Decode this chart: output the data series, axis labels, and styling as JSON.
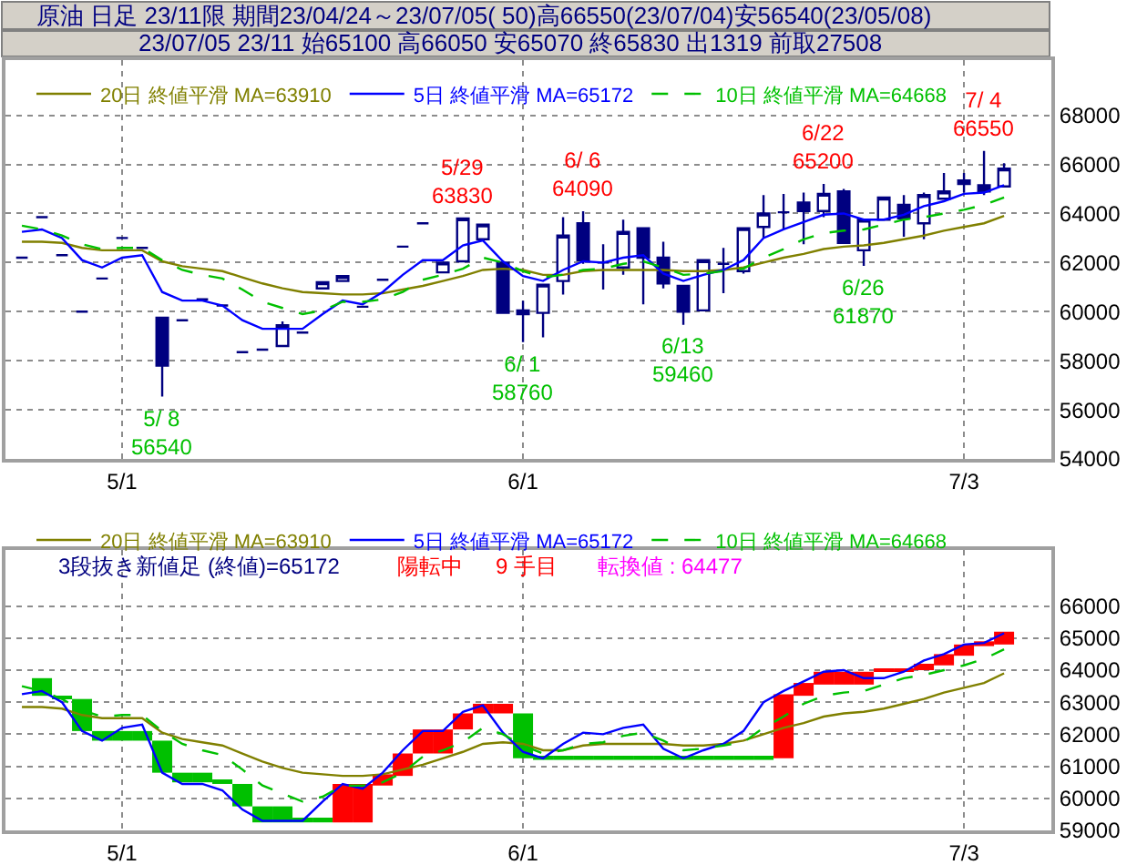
{
  "chart_data": [
    {
      "type": "candlestick",
      "title": "原油 日足 23/11限 期間23/04/24～23/07/05( 50)高66550(23/07/04)安56540(23/05/08)",
      "subtitle": "23/07/05 23/11 始65100 高66050 安65070 終65830 出1319 前取27508",
      "categories": [
        null,
        null,
        null,
        null,
        null,
        "5/1",
        null,
        null,
        null,
        null,
        null,
        null,
        null,
        null,
        null,
        null,
        null,
        null,
        null,
        null,
        null,
        null,
        null,
        null,
        null,
        "6/1",
        null,
        null,
        null,
        null,
        null,
        null,
        null,
        null,
        null,
        null,
        null,
        null,
        null,
        null,
        null,
        null,
        null,
        null,
        null,
        null,
        null,
        "7/3",
        null,
        null
      ],
      "ohlc": [
        [
          62200,
          62200,
          62200,
          62200
        ],
        [
          63850,
          63850,
          63850,
          63850
        ],
        [
          62300,
          62300,
          62300,
          62300
        ],
        [
          60000,
          60000,
          60000,
          60000
        ],
        [
          61350,
          61350,
          61350,
          61350
        ],
        [
          63000,
          63000,
          63000,
          63000
        ],
        [
          62600,
          62600,
          62600,
          62600
        ],
        [
          59750,
          59750,
          56540,
          57800
        ],
        [
          59650,
          59650,
          59650,
          59650
        ],
        [
          60500,
          60500,
          60500,
          60500
        ],
        [
          60250,
          60250,
          60250,
          60250
        ],
        [
          58350,
          58350,
          58350,
          58350
        ],
        [
          58450,
          58450,
          58450,
          58450
        ],
        [
          58600,
          59600,
          58550,
          59450
        ],
        [
          59150,
          59150,
          59150,
          59150
        ],
        [
          60950,
          61200,
          60950,
          61200
        ],
        [
          61250,
          61450,
          61250,
          61450
        ],
        [
          60200,
          60200,
          60200,
          60200
        ],
        [
          61300,
          61300,
          61300,
          61300
        ],
        [
          62650,
          62650,
          62650,
          62650
        ],
        [
          63600,
          63600,
          63600,
          63600
        ],
        [
          61600,
          62000,
          61600,
          62000
        ],
        [
          62050,
          63830,
          62050,
          63800
        ],
        [
          62950,
          63550,
          62950,
          63550
        ],
        [
          62000,
          62000,
          59950,
          59950
        ],
        [
          60050,
          60450,
          58760,
          59900
        ],
        [
          59950,
          61100,
          58950,
          61100
        ],
        [
          61250,
          63850,
          60700,
          63100
        ],
        [
          63600,
          64090,
          61950,
          62100
        ],
        [
          62000,
          62750,
          60900,
          62000
        ],
        [
          61800,
          63750,
          61500,
          63250
        ],
        [
          63400,
          63400,
          60300,
          62200
        ],
        [
          62200,
          62850,
          60950,
          61150
        ],
        [
          61050,
          61050,
          59460,
          60000
        ],
        [
          60050,
          62100,
          60050,
          62100
        ],
        [
          61950,
          62600,
          60750,
          61950
        ],
        [
          61650,
          63400,
          61550,
          63400
        ],
        [
          63450,
          64750,
          63000,
          64000
        ],
        [
          64050,
          64800,
          63350,
          64050
        ],
        [
          64450,
          64850,
          62750,
          64100
        ],
        [
          64100,
          65200,
          63850,
          64800
        ],
        [
          64900,
          65000,
          62800,
          62800
        ],
        [
          62500,
          63750,
          61870,
          63750
        ],
        [
          63750,
          64650,
          63750,
          64650
        ],
        [
          64350,
          64750,
          63050,
          63800
        ],
        [
          63600,
          64850,
          62950,
          64750
        ],
        [
          64600,
          65650,
          64600,
          64900
        ],
        [
          65350,
          65650,
          64850,
          65200
        ],
        [
          65150,
          66550,
          64750,
          64900
        ],
        [
          65100,
          66050,
          65070,
          65830
        ]
      ],
      "color": "#000080",
      "series": [
        {
          "type": "line",
          "name": "20日 終値平滑 MA=63910",
          "color": "#808000",
          "values": [
            62850,
            62850,
            62800,
            62600,
            62500,
            62500,
            62500,
            62050,
            61850,
            61750,
            61650,
            61400,
            61150,
            60950,
            60800,
            60750,
            60700,
            60700,
            60750,
            60900,
            61050,
            61250,
            61450,
            61700,
            61750,
            61700,
            61500,
            61500,
            61650,
            61700,
            61700,
            61700,
            61700,
            61650,
            61650,
            61700,
            61800,
            62000,
            62200,
            62350,
            62550,
            62650,
            62700,
            62800,
            62950,
            63100,
            63300,
            63450,
            63600,
            63900
          ]
        },
        {
          "type": "line",
          "name": "5日 終値平滑 MA=65172",
          "color": "#0000ff",
          "values": [
            63250,
            63350,
            63000,
            62100,
            61800,
            62200,
            62300,
            60800,
            60450,
            60450,
            60250,
            59650,
            59300,
            59300,
            59300,
            59900,
            60450,
            60300,
            60800,
            61500,
            62100,
            62100,
            62700,
            62900,
            62050,
            61450,
            61250,
            61700,
            62050,
            62000,
            62200,
            62300,
            61550,
            61250,
            61500,
            61700,
            62100,
            63000,
            63350,
            63650,
            63950,
            64000,
            63750,
            63750,
            63950,
            64300,
            64500,
            64800,
            64850,
            65150
          ]
        },
        {
          "type": "line",
          "name": "10日 終値平滑 MA=64668",
          "color": "#00c000",
          "line_style": "dashed",
          "values": [
            63500,
            63350,
            63100,
            62750,
            62550,
            62600,
            62600,
            62100,
            61700,
            61500,
            61350,
            60900,
            60400,
            60150,
            59900,
            60050,
            60400,
            60400,
            60500,
            60800,
            61300,
            61500,
            61750,
            62200,
            62000,
            61650,
            61400,
            61500,
            61700,
            61750,
            61950,
            62050,
            61800,
            61500,
            61550,
            61650,
            61750,
            62200,
            62550,
            62950,
            63200,
            63300,
            63350,
            63550,
            63750,
            63850,
            64000,
            64150,
            64350,
            64650
          ]
        }
      ],
      "ylim": [
        54000,
        70250
      ],
      "yticks": [
        54000,
        56000,
        58000,
        60000,
        62000,
        64000,
        66000,
        68000
      ],
      "grid": true,
      "legend": "top left",
      "annotations": [
        {
          "text": "5/ 8\n56540",
          "y": 56540
        },
        {
          "text": "5/29\n63830",
          "y": 63830
        },
        {
          "text": "6/ 1\n58760",
          "y": 58760
        },
        {
          "text": "6/ 6\n64090",
          "y": 64090
        },
        {
          "text": "6/13\n59460",
          "y": 59460
        },
        {
          "text": "6/22\n65200",
          "y": 65200
        },
        {
          "text": "6/26\n61870",
          "y": 61870
        },
        {
          "text": "7/ 4\n66550",
          "y": 66550
        }
      ]
    },
    {
      "type": "bar",
      "categories": [
        null,
        null,
        null,
        null,
        null,
        "5/1",
        null,
        null,
        null,
        null,
        null,
        null,
        null,
        null,
        null,
        null,
        null,
        null,
        null,
        null,
        null,
        null,
        null,
        null,
        null,
        "6/1",
        null,
        null,
        null,
        null,
        null,
        null,
        null,
        null,
        null,
        null,
        null,
        null,
        null,
        null,
        null,
        null,
        null,
        null,
        null,
        null,
        null,
        "7/3",
        null,
        null
      ],
      "series": [
        {
          "base": [
            null,
            63750,
            63200,
            63100,
            62100,
            62100,
            62100,
            61800,
            60800,
            60800,
            60550,
            60450,
            59750,
            59750,
            59350,
            59350,
            59250,
            59250,
            60400,
            60700,
            61400,
            61400,
            62150,
            62650,
            62650,
            62650,
            61300,
            61300,
            61300,
            61300,
            61300,
            61300,
            61300,
            61300,
            61300,
            61300,
            61300,
            61300,
            61250,
            63200,
            63550,
            63550,
            63550,
            63950,
            63950,
            64000,
            64150,
            64450,
            64750,
            64800
          ],
          "values": [
            null,
            -550,
            -100,
            -1000,
            -300,
            -300,
            -300,
            -1000,
            -300,
            -300,
            -100,
            -700,
            -500,
            -500,
            -100,
            -100,
            1200,
            1200,
            350,
            700,
            750,
            750,
            500,
            300,
            300,
            -1400,
            -100,
            -100,
            -100,
            -100,
            -100,
            -100,
            -100,
            -100,
            -100,
            -100,
            -100,
            -100,
            2000,
            400,
            400,
            400,
            400,
            100,
            100,
            200,
            350,
            350,
            150,
            400
          ],
          "colors": [
            null,
            "#00c000",
            "#00c000",
            "#00c000",
            "#00c000",
            "#00c000",
            "#00c000",
            "#00c000",
            "#00c000",
            "#00c000",
            "#00c000",
            "#00c000",
            "#00c000",
            "#00c000",
            "#00c000",
            "#00c000",
            "#ff0000",
            "#ff0000",
            "#ff0000",
            "#ff0000",
            "#ff0000",
            "#ff0000",
            "#ff0000",
            "#ff0000",
            "#ff0000",
            "#00c000",
            "#00c000",
            "#00c000",
            "#00c000",
            "#00c000",
            "#00c000",
            "#00c000",
            "#00c000",
            "#00c000",
            "#00c000",
            "#00c000",
            "#00c000",
            "#00c000",
            "#ff0000",
            "#ff0000",
            "#ff0000",
            "#ff0000",
            "#ff0000",
            "#ff0000",
            "#ff0000",
            "#ff0000",
            "#ff0000",
            "#ff0000",
            "#ff0000",
            "#ff0000"
          ]
        },
        {
          "type": "line",
          "name": "20日 終値平滑 MA=63910",
          "color": "#808000",
          "values": [
            62850,
            62850,
            62800,
            62600,
            62500,
            62500,
            62500,
            62050,
            61850,
            61750,
            61650,
            61400,
            61150,
            60950,
            60800,
            60750,
            60700,
            60700,
            60750,
            60900,
            61050,
            61250,
            61450,
            61700,
            61750,
            61700,
            61500,
            61500,
            61650,
            61700,
            61700,
            61700,
            61700,
            61650,
            61650,
            61700,
            61800,
            62000,
            62200,
            62350,
            62550,
            62650,
            62700,
            62800,
            62950,
            63100,
            63300,
            63450,
            63600,
            63900
          ]
        },
        {
          "type": "line",
          "name": "5日 終値平滑 MA=65172",
          "color": "#0000ff",
          "values": [
            63250,
            63350,
            63000,
            62100,
            61800,
            62200,
            62300,
            60800,
            60450,
            60450,
            60250,
            59650,
            59300,
            59300,
            59300,
            59900,
            60450,
            60300,
            60800,
            61500,
            62100,
            62100,
            62700,
            62900,
            62050,
            61450,
            61250,
            61700,
            62050,
            62000,
            62200,
            62300,
            61550,
            61250,
            61500,
            61700,
            62100,
            63000,
            63350,
            63650,
            63950,
            64000,
            63750,
            63750,
            63950,
            64300,
            64500,
            64800,
            64850,
            65150
          ]
        },
        {
          "type": "line",
          "name": "10日 終値平滑 MA=64668",
          "color": "#00c000",
          "line_style": "dashed",
          "values": [
            63500,
            63350,
            63100,
            62750,
            62550,
            62600,
            62600,
            62100,
            61700,
            61500,
            61350,
            60900,
            60400,
            60150,
            59900,
            60050,
            60400,
            60400,
            60500,
            60800,
            61300,
            61500,
            61750,
            62200,
            62000,
            61650,
            61400,
            61500,
            61700,
            61750,
            61950,
            62050,
            61800,
            61500,
            61550,
            61650,
            61750,
            62200,
            62550,
            62950,
            63200,
            63300,
            63350,
            63550,
            63750,
            63850,
            64000,
            64150,
            64350,
            64650
          ]
        }
      ],
      "ylim": [
        59000,
        67750
      ],
      "yticks": [
        59000,
        60000,
        61000,
        62000,
        63000,
        64000,
        65000,
        66000
      ],
      "grid": true,
      "legend": "top left",
      "annotations": [
        "3段抜き新値足 (終値)=65172",
        "陽転中",
        "9 手目",
        "転換値 : 64477"
      ]
    }
  ]
}
